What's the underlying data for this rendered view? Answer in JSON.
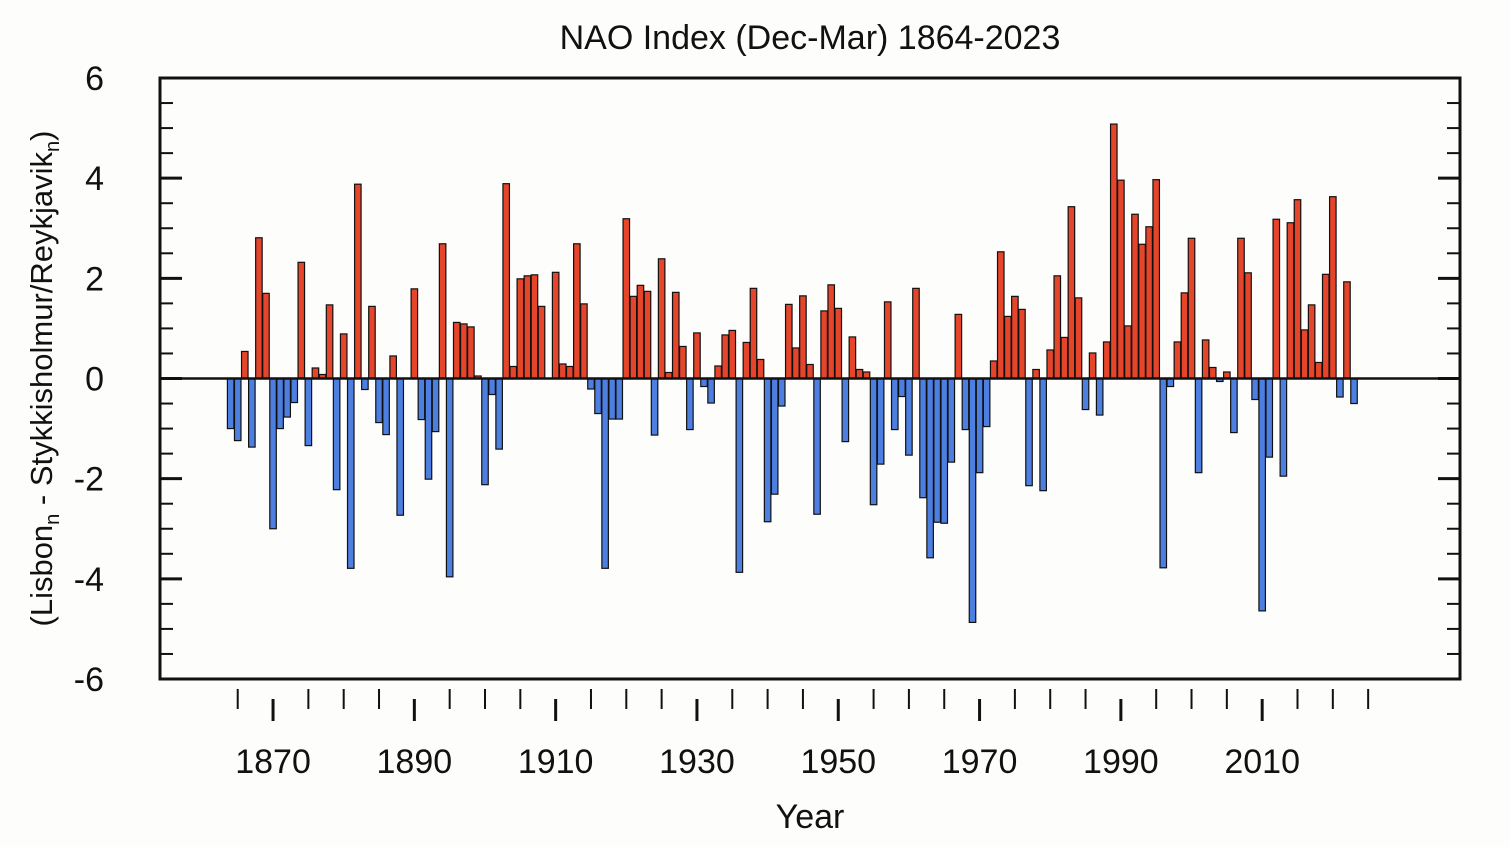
{
  "chart_data": {
    "type": "bar",
    "title": "NAO Index (Dec-Mar) 1864-2023",
    "xlabel": "Year",
    "ylabel": {
      "pieces": [
        {
          "text": "(Lisbon",
          "sub": false
        },
        {
          "text": "n",
          "sub": true
        },
        {
          "text": " - Stykkisholmur/Reykjavik",
          "sub": false
        },
        {
          "text": "n",
          "sub": true
        },
        {
          "text": ")",
          "sub": false
        }
      ]
    },
    "xlim": [
      1854,
      2038
    ],
    "ylim": [
      -6,
      6
    ],
    "x_tick_labels": [
      "1870",
      "1890",
      "1910",
      "1930",
      "1950",
      "1970",
      "1990",
      "2010"
    ],
    "y_tick_labels": [
      "6",
      "4",
      "2",
      "0",
      "-2",
      "-4",
      "-6"
    ],
    "grid": false,
    "legend": "none",
    "colors": {
      "positive": "#e4452b",
      "negative": "#4d7fe0",
      "edge": "#111111",
      "axis": "#111111"
    },
    "start_year": 1864,
    "values": [
      -1.0,
      -1.24,
      0.54,
      -1.37,
      2.81,
      1.7,
      -3.0,
      -1.0,
      -0.77,
      -0.48,
      2.32,
      -1.34,
      0.21,
      0.08,
      1.47,
      -2.22,
      0.89,
      -3.79,
      3.88,
      -0.22,
      1.44,
      -0.88,
      -1.12,
      0.45,
      -2.73,
      0.0,
      1.79,
      -0.82,
      -2.01,
      -1.06,
      2.69,
      -3.96,
      1.12,
      1.09,
      1.03,
      0.05,
      -2.12,
      -0.32,
      -1.41,
      3.89,
      0.24,
      1.99,
      2.05,
      2.07,
      1.44,
      0.0,
      2.12,
      0.29,
      0.24,
      2.69,
      1.49,
      -0.21,
      -0.7,
      -3.79,
      -0.81,
      -0.81,
      3.19,
      1.64,
      1.86,
      1.74,
      -1.13,
      2.39,
      0.12,
      1.72,
      0.64,
      -1.02,
      0.91,
      -0.16,
      -0.49,
      0.25,
      0.87,
      0.96,
      -3.87,
      0.72,
      1.8,
      0.38,
      -2.86,
      -2.31,
      -0.55,
      1.48,
      0.61,
      1.65,
      0.28,
      -2.71,
      1.35,
      1.87,
      1.4,
      -1.26,
      0.83,
      0.18,
      0.13,
      -2.52,
      -1.71,
      1.53,
      -1.02,
      -0.36,
      -1.53,
      1.8,
      -2.38,
      -3.58,
      -2.87,
      -2.89,
      -1.67,
      1.28,
      -1.02,
      -4.87,
      -1.88,
      -0.96,
      0.35,
      2.53,
      1.24,
      1.64,
      1.38,
      -2.14,
      0.18,
      -2.24,
      0.57,
      2.05,
      0.82,
      3.43,
      1.61,
      -0.62,
      0.51,
      -0.73,
      0.73,
      5.08,
      3.96,
      1.05,
      3.28,
      2.68,
      3.03,
      3.97,
      -3.78,
      -0.16,
      0.73,
      1.71,
      2.8,
      -1.88,
      0.77,
      0.22,
      -0.06,
      0.13,
      -1.08,
      2.8,
      2.11,
      -0.42,
      -4.64,
      -1.57,
      3.18,
      -1.95,
      3.11,
      3.57,
      0.97,
      1.47,
      0.32,
      2.08,
      3.63,
      -0.37,
      1.93,
      -0.5
    ]
  }
}
